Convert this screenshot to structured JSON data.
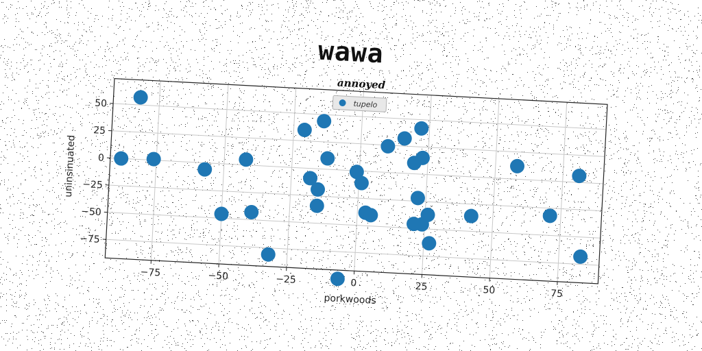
{
  "chart_data": {
    "type": "scatter",
    "title": "wawa",
    "subtitle": "annoyed",
    "xlabel": "porkwoods",
    "ylabel": "uninsinuated",
    "xlim": [
      -92,
      90
    ],
    "ylim": [
      -92,
      73
    ],
    "xticks": [
      -75,
      -50,
      -25,
      0,
      25,
      50,
      75
    ],
    "yticks": [
      -75,
      -50,
      -25,
      0,
      25,
      50
    ],
    "grid": true,
    "legend_position": "upper-center",
    "series": [
      {
        "name": "tupelo",
        "color": "#1f77b4",
        "x": [
          -82,
          -88,
          -76,
          -57,
          -42,
          -50,
          -39,
          -32,
          -21,
          -14,
          -12,
          -15,
          -15,
          -18,
          -6,
          -1,
          1,
          3,
          5,
          10,
          16,
          20,
          22,
          22,
          23,
          24,
          26,
          21,
          27,
          42,
          58,
          71,
          81,
          83
        ],
        "y": [
          57,
          0,
          1,
          -6,
          5,
          -46,
          -43,
          -81,
          35,
          44,
          10,
          -19,
          -34,
          -9,
          -100,
          -1,
          -11,
          -38,
          -40,
          24,
          32,
          10,
          -22,
          42,
          15,
          -46,
          -37,
          -46,
          -63,
          -36,
          12,
          -32,
          6,
          -68
        ]
      }
    ]
  }
}
